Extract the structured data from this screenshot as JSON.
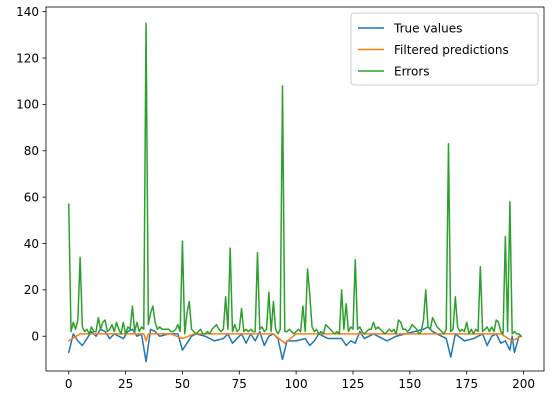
{
  "chart_data": {
    "type": "line",
    "title": "",
    "xlabel": "",
    "ylabel": "",
    "xlim": [
      -10,
      209
    ],
    "ylim": [
      -15,
      142
    ],
    "xticks": [
      0,
      25,
      50,
      75,
      100,
      125,
      150,
      175,
      200
    ],
    "yticks": [
      0,
      20,
      40,
      60,
      80,
      100,
      120,
      140
    ],
    "grid": false,
    "legend_position": "top-right",
    "series": [
      {
        "name": "True values",
        "color": "#1f77b4",
        "x": [
          0,
          2,
          4,
          6,
          8,
          10,
          12,
          14,
          16,
          18,
          20,
          22,
          24,
          26,
          28,
          30,
          32,
          34,
          36,
          38,
          40,
          44,
          48,
          50,
          52,
          54,
          56,
          60,
          64,
          68,
          70,
          72,
          74,
          76,
          78,
          80,
          82,
          84,
          86,
          88,
          90,
          92,
          94,
          96,
          100,
          104,
          106,
          108,
          110,
          114,
          120,
          122,
          124,
          126,
          128,
          130,
          134,
          140,
          144,
          148,
          152,
          156,
          158,
          160,
          164,
          166,
          168,
          170,
          174,
          178,
          182,
          184,
          186,
          188,
          190,
          192,
          194,
          195,
          196,
          198,
          199
        ],
        "y": [
          -7,
          1,
          -2,
          -4,
          -1,
          2,
          0,
          3,
          2,
          -1,
          1,
          0,
          -1,
          2,
          3,
          0,
          1,
          -11,
          3,
          2,
          0,
          1,
          1,
          -6,
          -3,
          0,
          1,
          0,
          -2,
          -1,
          1,
          -3,
          -1,
          1,
          -3,
          1,
          -2,
          2,
          -4,
          0,
          1,
          -1,
          -10,
          -2,
          -2,
          -1,
          -4,
          -2,
          1,
          -1,
          -1,
          -4,
          -2,
          -3,
          2,
          -1,
          1,
          -2,
          0,
          1,
          2,
          3,
          4,
          2,
          0,
          -1,
          -9,
          1,
          -2,
          -1,
          1,
          -4,
          0,
          1,
          -3,
          -2,
          -6,
          0,
          -7,
          0,
          0
        ]
      },
      {
        "name": "Filtered predictions",
        "color": "#ff7f0e",
        "x": [
          0,
          5,
          10,
          15,
          20,
          25,
          30,
          33,
          34,
          35,
          40,
          45,
          50,
          55,
          60,
          65,
          70,
          75,
          80,
          85,
          90,
          95,
          100,
          105,
          110,
          115,
          120,
          125,
          130,
          135,
          140,
          145,
          150,
          155,
          160,
          165,
          170,
          175,
          180,
          185,
          190,
          195,
          199
        ],
        "y": [
          -2,
          1,
          1,
          1,
          1,
          1,
          1,
          1,
          -2,
          1,
          1,
          1,
          -1,
          1,
          1,
          1,
          1,
          1,
          1,
          1,
          1,
          -3,
          1,
          1,
          1,
          1,
          1,
          1,
          1,
          1,
          1,
          1,
          1,
          1,
          1,
          1,
          1,
          1,
          1,
          1,
          1,
          -2,
          0
        ]
      },
      {
        "name": "Errors",
        "color": "#2ca02c",
        "x": [
          0,
          1,
          2,
          3,
          4,
          5,
          6,
          7,
          8,
          9,
          10,
          11,
          12,
          13,
          14,
          15,
          16,
          17,
          18,
          19,
          20,
          21,
          22,
          23,
          24,
          25,
          26,
          27,
          28,
          29,
          30,
          31,
          32,
          33,
          34,
          35,
          36,
          37,
          38,
          39,
          40,
          41,
          42,
          43,
          44,
          45,
          46,
          47,
          48,
          49,
          50,
          51,
          52,
          53,
          54,
          55,
          56,
          57,
          58,
          59,
          60,
          61,
          62,
          63,
          64,
          65,
          66,
          67,
          68,
          69,
          70,
          71,
          72,
          73,
          74,
          75,
          76,
          77,
          78,
          79,
          80,
          81,
          82,
          83,
          84,
          85,
          86,
          87,
          88,
          89,
          90,
          91,
          92,
          93,
          94,
          95,
          96,
          97,
          98,
          99,
          100,
          101,
          102,
          103,
          104,
          105,
          106,
          107,
          108,
          109,
          110,
          111,
          112,
          113,
          114,
          115,
          116,
          117,
          118,
          119,
          120,
          121,
          122,
          123,
          124,
          125,
          126,
          127,
          128,
          129,
          130,
          131,
          132,
          133,
          134,
          135,
          136,
          137,
          138,
          139,
          140,
          141,
          142,
          143,
          144,
          145,
          146,
          147,
          148,
          149,
          150,
          151,
          152,
          153,
          154,
          155,
          156,
          157,
          158,
          159,
          160,
          161,
          162,
          163,
          164,
          165,
          166,
          167,
          168,
          169,
          170,
          171,
          172,
          173,
          174,
          175,
          176,
          177,
          178,
          179,
          180,
          181,
          182,
          183,
          184,
          185,
          186,
          187,
          188,
          189,
          190,
          191,
          192,
          193,
          194,
          195,
          196,
          197,
          198,
          199
        ],
        "y": [
          57,
          2,
          6,
          3,
          7,
          34,
          4,
          2,
          3,
          1,
          4,
          2,
          2,
          8,
          3,
          6,
          7,
          2,
          3,
          5,
          2,
          6,
          3,
          1,
          6,
          1,
          4,
          3,
          13,
          2,
          6,
          2,
          4,
          3,
          135,
          5,
          10,
          13,
          6,
          3,
          4,
          3,
          3,
          3,
          3,
          2,
          2,
          3,
          5,
          2,
          41,
          1,
          10,
          15,
          3,
          2,
          1,
          2,
          3,
          1,
          1,
          2,
          1,
          3,
          4,
          5,
          3,
          2,
          3,
          17,
          3,
          38,
          2,
          5,
          2,
          3,
          12,
          2,
          3,
          2,
          3,
          2,
          2,
          36,
          3,
          4,
          2,
          3,
          19,
          2,
          15,
          3,
          1,
          3,
          108,
          2,
          2,
          3,
          2,
          1,
          2,
          3,
          2,
          13,
          2,
          29,
          18,
          4,
          2,
          3,
          1,
          2,
          1,
          5,
          4,
          3,
          2,
          1,
          2,
          1,
          20,
          3,
          14,
          2,
          4,
          3,
          33,
          3,
          4,
          2,
          1,
          2,
          3,
          3,
          6,
          3,
          4,
          3,
          2,
          1,
          2,
          3,
          2,
          3,
          1,
          7,
          6,
          3,
          3,
          2,
          3,
          5,
          4,
          3,
          1,
          2,
          7,
          20,
          4,
          3,
          8,
          6,
          4,
          3,
          2,
          1,
          3,
          83,
          2,
          3,
          17,
          4,
          2,
          3,
          2,
          6,
          1,
          3,
          1,
          3,
          2,
          30,
          2,
          3,
          4,
          2,
          4,
          2,
          7,
          6,
          2,
          1,
          43,
          2,
          58,
          1,
          2,
          1,
          1,
          0
        ]
      }
    ]
  }
}
